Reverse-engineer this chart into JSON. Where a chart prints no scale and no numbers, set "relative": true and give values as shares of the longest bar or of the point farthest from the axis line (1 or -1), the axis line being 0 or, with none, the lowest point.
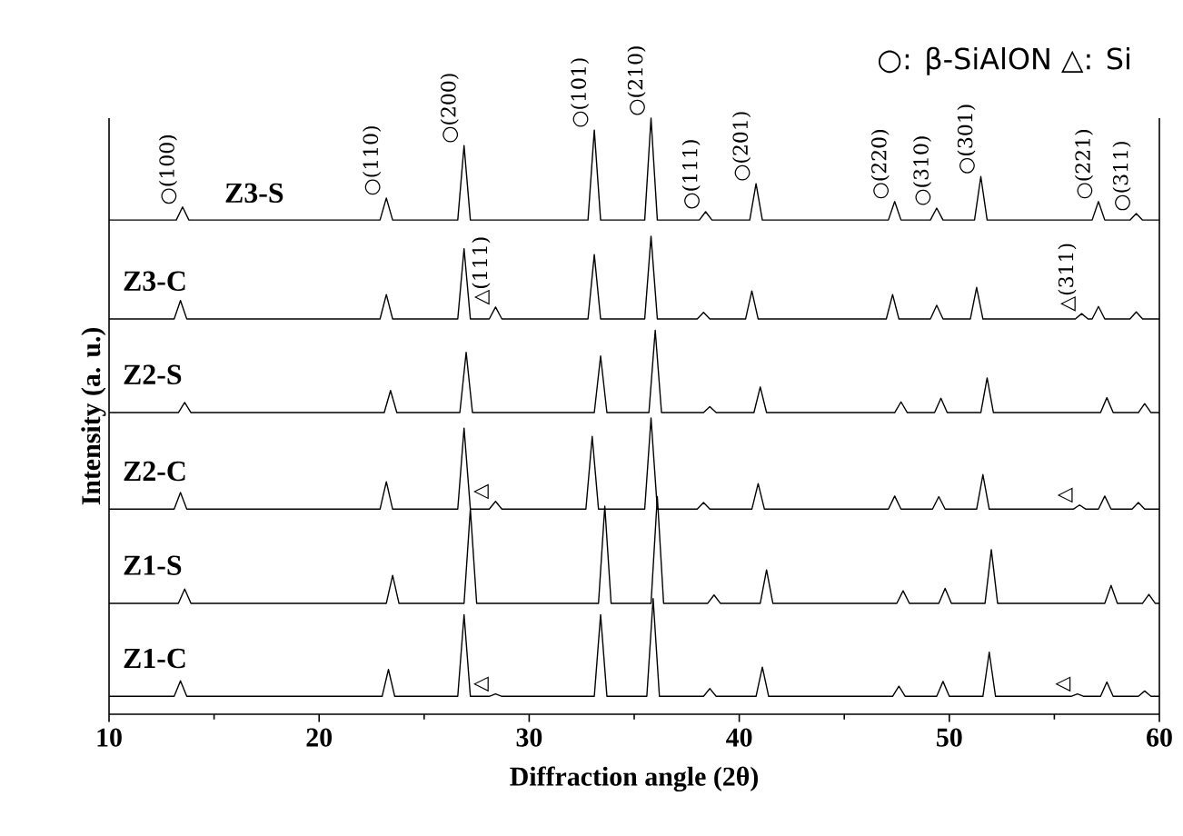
{
  "chart_data": {
    "type": "line",
    "relative": true,
    "xlabel": "Diffraction angle (2θ)",
    "ylabel": "Intensity (a. u.)",
    "xlim": [
      10,
      60
    ],
    "xticks": [
      10,
      20,
      30,
      40,
      50,
      60
    ],
    "tick_labels": "x",
    "series": [
      {
        "name": "Z3-S",
        "color": "#000000",
        "x": [
          10,
          13.2,
          13.5,
          13.8,
          22.9,
          23.2,
          23.5,
          26.6,
          26.9,
          27.2,
          32.8,
          33.1,
          33.4,
          35.5,
          35.8,
          36.1,
          38.1,
          38.4,
          38.7,
          40.5,
          40.8,
          41.1,
          47.1,
          47.4,
          47.7,
          49.1,
          49.4,
          49.7,
          51.2,
          51.5,
          51.8,
          56.8,
          57.1,
          57.4,
          58.6,
          58.9,
          59.2,
          60
        ],
        "values": [
          0.829,
          0.829,
          0.851,
          0.829,
          0.829,
          0.866,
          0.829,
          0.829,
          0.954,
          0.829,
          0.829,
          0.98,
          0.829,
          0.829,
          1,
          0.829,
          0.829,
          0.843,
          0.829,
          0.829,
          0.89,
          0.829,
          0.829,
          0.86,
          0.829,
          0.829,
          0.849,
          0.829,
          0.829,
          0.902,
          0.829,
          0.829,
          0.86,
          0.829,
          0.829,
          0.84,
          0.829,
          0.829
        ]
      },
      {
        "name": "Z3-C",
        "color": "#000000",
        "x": [
          10,
          13.1,
          13.4,
          13.7,
          22.9,
          23.2,
          23.5,
          26.6,
          26.9,
          27.2,
          28.1,
          28.4,
          28.7,
          32.8,
          33.1,
          33.4,
          35.5,
          35.8,
          36.1,
          38.0,
          38.3,
          38.6,
          40.3,
          40.6,
          40.9,
          47.0,
          47.3,
          47.6,
          49.1,
          49.4,
          49.7,
          51.0,
          51.3,
          51.6,
          56.0,
          56.3,
          56.6,
          56.8,
          57.1,
          57.4,
          58.6,
          58.9,
          59.2,
          60
        ],
        "values": [
          0.663,
          0.663,
          0.694,
          0.663,
          0.663,
          0.704,
          0.663,
          0.663,
          0.781,
          0.663,
          0.663,
          0.683,
          0.663,
          0.663,
          0.771,
          0.663,
          0.663,
          0.802,
          0.663,
          0.663,
          0.674,
          0.663,
          0.663,
          0.71,
          0.663,
          0.663,
          0.704,
          0.663,
          0.663,
          0.686,
          0.663,
          0.663,
          0.716,
          0.663,
          0.663,
          0.672,
          0.663,
          0.663,
          0.684,
          0.663,
          0.663,
          0.675,
          0.663,
          0.663
        ]
      },
      {
        "name": "Z2-S",
        "color": "#000000",
        "x": [
          10,
          13.3,
          13.6,
          13.9,
          23.1,
          23.4,
          23.7,
          26.7,
          27.0,
          27.3,
          33.1,
          33.4,
          33.7,
          35.7,
          36.0,
          36.3,
          38.3,
          38.6,
          38.9,
          40.7,
          41.0,
          41.3,
          47.4,
          47.7,
          48.0,
          49.3,
          49.6,
          49.9,
          51.5,
          51.8,
          52.1,
          57.2,
          57.5,
          57.8,
          59.0,
          59.3,
          59.6,
          60
        ],
        "values": [
          0.506,
          0.506,
          0.523,
          0.506,
          0.506,
          0.543,
          0.506,
          0.506,
          0.607,
          0.506,
          0.506,
          0.601,
          0.506,
          0.506,
          0.644,
          0.506,
          0.506,
          0.516,
          0.506,
          0.506,
          0.549,
          0.506,
          0.506,
          0.524,
          0.506,
          0.506,
          0.53,
          0.506,
          0.506,
          0.564,
          0.506,
          0.506,
          0.531,
          0.506,
          0.506,
          0.521,
          0.506,
          0.506
        ]
      },
      {
        "name": "Z2-C",
        "color": "#000000",
        "x": [
          10,
          13.1,
          13.4,
          13.7,
          22.9,
          23.2,
          23.5,
          26.6,
          26.9,
          27.2,
          28.1,
          28.4,
          28.7,
          32.7,
          33.0,
          33.3,
          35.5,
          35.8,
          36.1,
          38.0,
          38.3,
          38.6,
          40.6,
          40.9,
          41.2,
          47.1,
          47.4,
          47.7,
          49.2,
          49.5,
          49.8,
          51.3,
          51.6,
          51.9,
          55.9,
          56.2,
          56.5,
          57.1,
          57.4,
          57.7,
          58.7,
          59.0,
          59.3,
          60
        ],
        "values": [
          0.344,
          0.344,
          0.372,
          0.344,
          0.344,
          0.39,
          0.344,
          0.344,
          0.48,
          0.344,
          0.344,
          0.357,
          0.344,
          0.344,
          0.466,
          0.344,
          0.344,
          0.497,
          0.344,
          0.344,
          0.355,
          0.344,
          0.344,
          0.387,
          0.344,
          0.344,
          0.366,
          0.344,
          0.344,
          0.365,
          0.344,
          0.344,
          0.402,
          0.344,
          0.344,
          0.351,
          0.344,
          0.344,
          0.366,
          0.344,
          0.344,
          0.355,
          0.344,
          0.344
        ]
      },
      {
        "name": "Z1-S",
        "color": "#000000",
        "x": [
          10,
          13.3,
          13.6,
          13.9,
          23.2,
          23.5,
          23.8,
          26.9,
          27.2,
          27.5,
          33.3,
          33.6,
          33.9,
          35.8,
          36.1,
          36.4,
          38.5,
          38.8,
          39.1,
          41.0,
          41.3,
          41.6,
          47.5,
          47.8,
          48.1,
          49.5,
          49.8,
          50.1,
          51.7,
          52.0,
          52.3,
          57.4,
          57.7,
          58.0,
          59.2,
          59.5,
          59.8,
          60
        ],
        "values": [
          0.186,
          0.186,
          0.21,
          0.186,
          0.186,
          0.233,
          0.186,
          0.186,
          0.344,
          0.186,
          0.186,
          0.349,
          0.186,
          0.186,
          0.365,
          0.186,
          0.186,
          0.2,
          0.186,
          0.186,
          0.242,
          0.186,
          0.186,
          0.207,
          0.186,
          0.186,
          0.211,
          0.186,
          0.186,
          0.276,
          0.186,
          0.186,
          0.216,
          0.186,
          0.186,
          0.201,
          0.186,
          0.186
        ]
      },
      {
        "name": "Z1-C",
        "color": "#000000",
        "x": [
          10,
          13.1,
          13.4,
          13.7,
          23.0,
          23.3,
          23.6,
          26.6,
          26.9,
          27.2,
          28.1,
          28.4,
          28.7,
          33.1,
          33.4,
          33.7,
          35.6,
          35.9,
          36.2,
          38.3,
          38.6,
          38.9,
          40.8,
          41.1,
          41.4,
          47.3,
          47.6,
          47.9,
          49.4,
          49.7,
          50.0,
          51.6,
          51.9,
          52.2,
          55.8,
          56.1,
          56.4,
          57.2,
          57.5,
          57.8,
          59.0,
          59.3,
          59.6,
          60
        ],
        "values": [
          0.03,
          0.03,
          0.056,
          0.03,
          0.03,
          0.075,
          0.03,
          0.03,
          0.167,
          0.03,
          0.03,
          0.034,
          0.03,
          0.03,
          0.167,
          0.03,
          0.03,
          0.194,
          0.03,
          0.03,
          0.043,
          0.03,
          0.03,
          0.079,
          0.03,
          0.03,
          0.047,
          0.03,
          0.03,
          0.055,
          0.03,
          0.03,
          0.104,
          0.03,
          0.03,
          0.034,
          0.03,
          0.03,
          0.054,
          0.03,
          0.03,
          0.039,
          0.03,
          0.03
        ]
      }
    ],
    "annotations": [
      "○: β-SiAlON △: Si",
      {
        "text": "○(100)",
        "x": 13.5,
        "y": 0.851
      },
      {
        "text": "○(110)",
        "x": 23.2,
        "y": 0.866
      },
      {
        "text": "○(200)",
        "x": 26.9,
        "y": 0.954
      },
      {
        "text": "○(101)",
        "x": 33.1,
        "y": 0.98
      },
      {
        "text": "○(210)",
        "x": 35.8,
        "y": 1
      },
      {
        "text": "○(111)",
        "x": 38.4,
        "y": 0.843
      },
      {
        "text": "○(201)",
        "x": 40.8,
        "y": 0.89
      },
      {
        "text": "○(220)",
        "x": 47.4,
        "y": 0.86
      },
      {
        "text": "○(310)",
        "x": 49.4,
        "y": 0.849
      },
      {
        "text": "○(301)",
        "x": 51.5,
        "y": 0.902
      },
      {
        "text": "○(221)",
        "x": 57.1,
        "y": 0.86
      },
      {
        "text": "○(311)",
        "x": 58.9,
        "y": 0.84
      },
      {
        "text": "△(111)",
        "x": 28.4,
        "y": 0.683
      },
      {
        "text": "△(311)",
        "x": 56.3,
        "y": 0.672
      },
      {
        "text": "△",
        "x": 28.4,
        "y": 0.357
      },
      {
        "text": "△",
        "x": 56.2,
        "y": 0.351
      },
      {
        "text": "△",
        "x": 28.4,
        "y": 0.034
      },
      {
        "text": "△",
        "x": 56.1,
        "y": 0.034
      }
    ]
  }
}
